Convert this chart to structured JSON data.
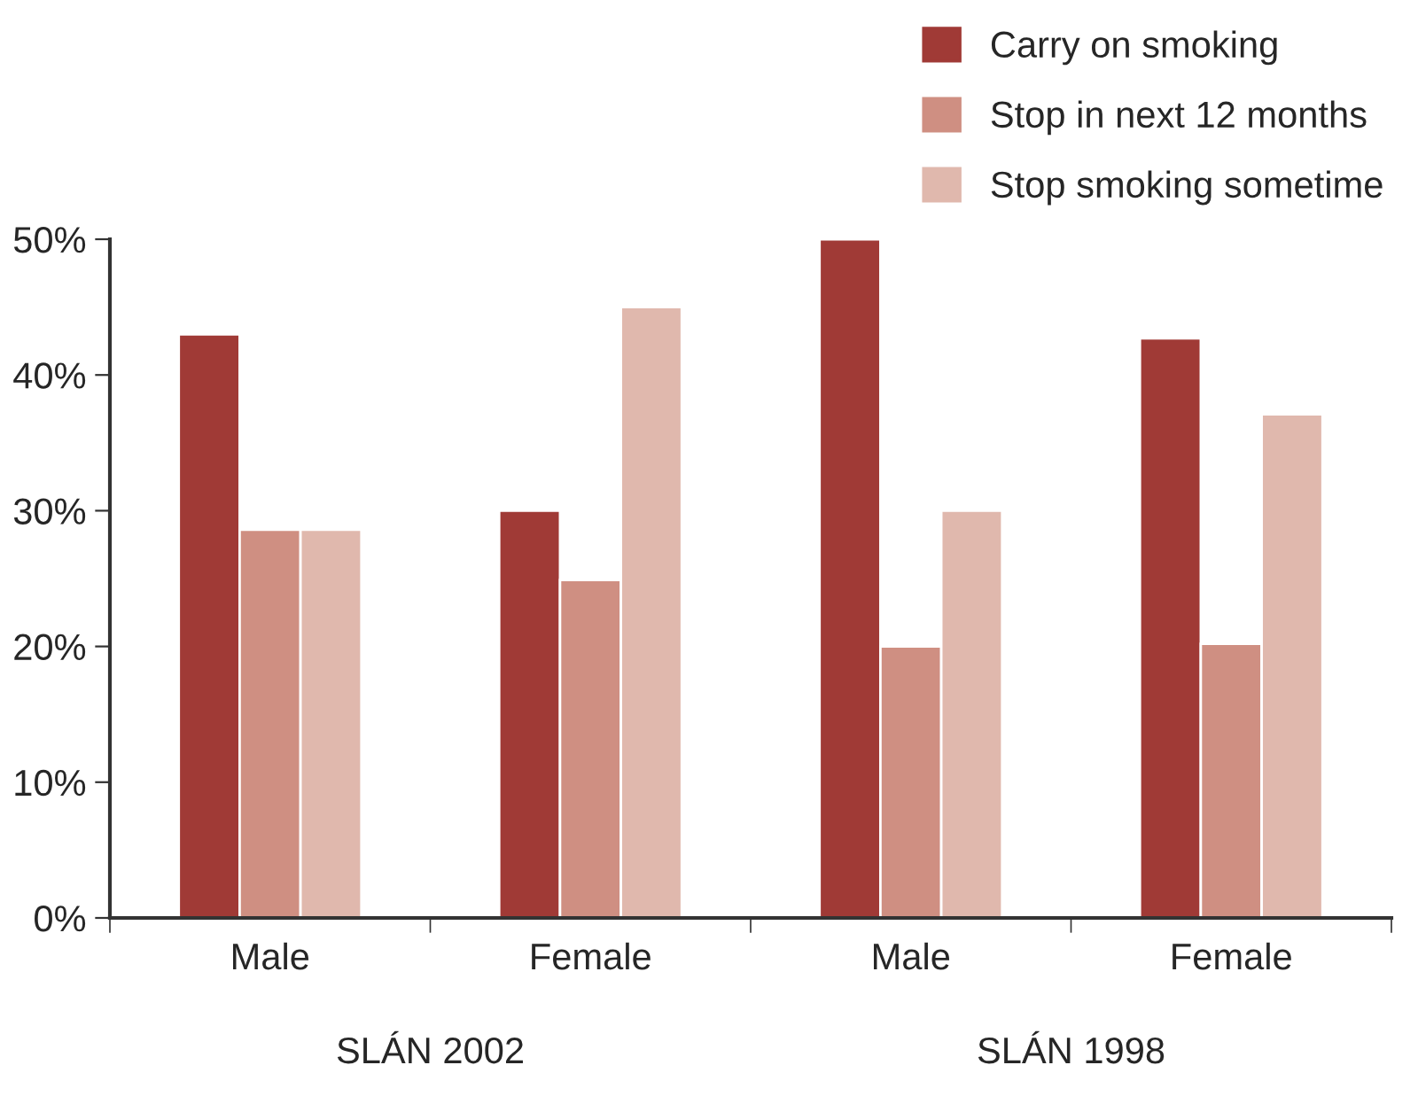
{
  "chart_data": {
    "type": "bar",
    "categories": [
      "Male",
      "Female",
      "Male",
      "Female"
    ],
    "series": [
      {
        "name": "Carry on smoking",
        "color": "#a03a36",
        "values": [
          43,
          30,
          50,
          42.7
        ]
      },
      {
        "name": "Stop in next 12 months",
        "color": "#cf8f82",
        "values": [
          28.6,
          24.9,
          20,
          20.2
        ]
      },
      {
        "name": "Stop smoking sometime",
        "color": "#e0b8ad",
        "values": [
          28.6,
          45,
          30,
          37.1
        ]
      }
    ],
    "ylim": [
      0,
      50
    ],
    "yticks": [
      {
        "value": 0,
        "label": "0%"
      },
      {
        "value": 10,
        "label": "10%"
      },
      {
        "value": 20,
        "label": "20%"
      },
      {
        "value": 30,
        "label": "30%"
      },
      {
        "value": 40,
        "label": "40%"
      },
      {
        "value": 50,
        "label": "50%"
      }
    ],
    "annotations": [
      "SLÁN 2002",
      "SLÁN 1998"
    ],
    "grid": false,
    "legend": "top right"
  }
}
